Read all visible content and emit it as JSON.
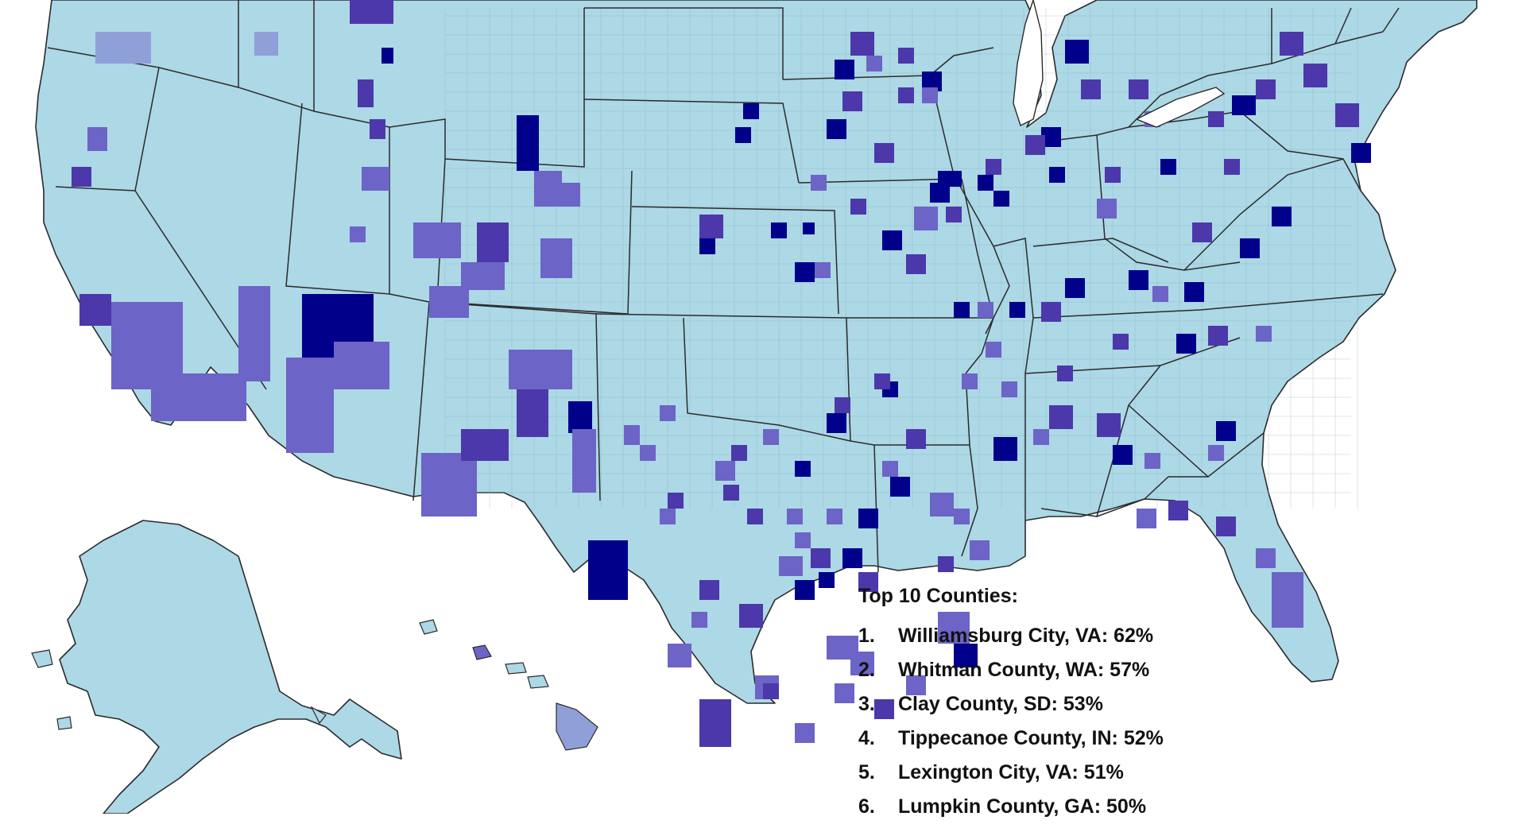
{
  "colors": {
    "ocean": "#ffffff",
    "base": "#add8e6",
    "tier1": "#8f9fd8",
    "tier2": "#6c64c6",
    "tier3": "#4c38aa",
    "tier4": "#00008b",
    "border": "#2b2b2b"
  },
  "legend": {
    "title": "Top 10 Counties:",
    "items": [
      {
        "rank": "1.",
        "text": "Williamsburg City, VA: 62%"
      },
      {
        "rank": "2.",
        "text": "Whitman County, WA: 57%"
      },
      {
        "rank": "3.",
        "text": "Clay County, SD: 53%"
      },
      {
        "rank": "4.",
        "text": "Tippecanoe County, IN: 52%"
      },
      {
        "rank": "5.",
        "text": "Lexington City, VA: 51%"
      },
      {
        "rank": "6.",
        "text": "Lumpkin County, GA: 50%"
      }
    ]
  }
}
